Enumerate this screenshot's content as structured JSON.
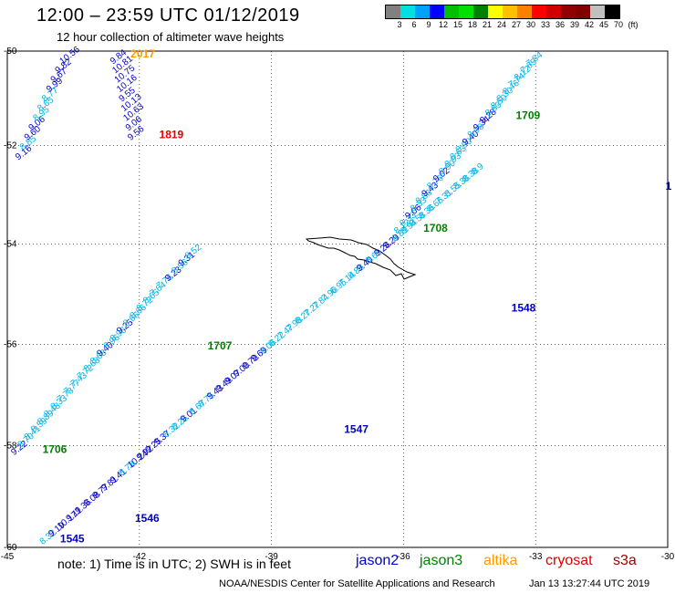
{
  "title": "12:00 – 23:59 UTC 01/12/2019",
  "subtitle": "12 hour collection of altimeter wave heights",
  "colorbar": {
    "colors": [
      "#808080",
      "#00e0e0",
      "#00a0ff",
      "#0000ff",
      "#00c000",
      "#00e000",
      "#008000",
      "#ffff00",
      "#ffc000",
      "#ff8000",
      "#ff0000",
      "#d00000",
      "#900000",
      "#800000",
      "#c0c0c0",
      "#000000"
    ],
    "labels": [
      "3",
      "6",
      "9",
      "12",
      "15",
      "18",
      "21",
      "24",
      "27",
      "30",
      "33",
      "36",
      "39",
      "42",
      "45",
      "70",
      "(ft)"
    ]
  },
  "map": {
    "lon_ticks": [
      "-45",
      "-42",
      "-39",
      "-36",
      "-33",
      "-30"
    ],
    "lat_ticks": [
      "-50",
      "-52",
      "-54",
      "-56",
      "-58",
      "-60"
    ],
    "time_labels": [
      {
        "text": "2017",
        "color": "#ff9900",
        "lon": -42.2,
        "lat": -50.15
      },
      {
        "text": "1819",
        "color": "#e00000",
        "lon": -41.55,
        "lat": -51.85
      },
      {
        "text": "1709",
        "color": "#008000",
        "lon": -33.45,
        "lat": -51.45
      },
      {
        "text": "1708",
        "color": "#008000",
        "lon": -35.55,
        "lat": -53.75
      },
      {
        "text": "1707",
        "color": "#008000",
        "lon": -40.45,
        "lat": -56.1
      },
      {
        "text": "1706",
        "color": "#008000",
        "lon": -44.2,
        "lat": -58.15
      },
      {
        "text": "1548",
        "color": "#0000cc",
        "lon": -33.55,
        "lat": -55.35
      },
      {
        "text": "1547",
        "color": "#0000cc",
        "lon": -37.35,
        "lat": -57.75
      },
      {
        "text": "1546",
        "color": "#0000cc",
        "lon": -42.1,
        "lat": -59.5
      },
      {
        "text": "1545",
        "color": "#0000cc",
        "lon": -43.8,
        "lat": -59.9
      },
      {
        "text": "1",
        "color": "#0000cc",
        "lon": -30.05,
        "lat": -52.9
      }
    ],
    "tracks": [
      {
        "name": "track-1708-1709",
        "points": [
          {
            "v": "8.12",
            "lon": -36.15,
            "lat": -53.8
          },
          {
            "v": "8.33",
            "lon": -36.02,
            "lat": -53.65
          },
          {
            "v": "9.06",
            "lon": -35.9,
            "lat": -53.5
          },
          {
            "v": "8.33",
            "lon": -35.78,
            "lat": -53.35
          },
          {
            "v": "8.86",
            "lon": -35.66,
            "lat": -53.2
          },
          {
            "v": "9.43",
            "lon": -35.52,
            "lat": -53.05
          },
          {
            "v": "8.76",
            "lon": -35.4,
            "lat": -52.9
          },
          {
            "v": "9.02",
            "lon": -35.26,
            "lat": -52.75
          },
          {
            "v": "8.90",
            "lon": -35.13,
            "lat": -52.6
          },
          {
            "v": "8.93",
            "lon": -35.0,
            "lat": -52.45
          },
          {
            "v": "8.63",
            "lon": -34.88,
            "lat": -52.3
          },
          {
            "v": "8.90",
            "lon": -34.75,
            "lat": -52.15
          },
          {
            "v": "9.40",
            "lon": -34.6,
            "lat": -52.0
          },
          {
            "v": "8.98",
            "lon": -34.48,
            "lat": -51.85
          },
          {
            "v": "9.34",
            "lon": -34.35,
            "lat": -51.7
          },
          {
            "v": "9.28",
            "lon": -34.2,
            "lat": -51.55
          },
          {
            "v": "8.83",
            "lon": -34.08,
            "lat": -51.4
          },
          {
            "v": "8.50",
            "lon": -33.95,
            "lat": -51.25
          },
          {
            "v": "8.30",
            "lon": -33.82,
            "lat": -51.1
          },
          {
            "v": "8.46",
            "lon": -33.68,
            "lat": -50.95
          },
          {
            "v": "7.74",
            "lon": -33.55,
            "lat": -50.8
          },
          {
            "v": "8.12",
            "lon": -33.42,
            "lat": -50.65
          },
          {
            "v": "7.65",
            "lon": -33.28,
            "lat": -50.5
          },
          {
            "v": "7.84",
            "lon": -33.15,
            "lat": -50.35
          }
        ]
      },
      {
        "name": "track-1706-1707",
        "points": [
          {
            "v": "9.22",
            "lon": -44.85,
            "lat": -58.2
          },
          {
            "v": "8.70",
            "lon": -44.7,
            "lat": -58.05
          },
          {
            "v": "8.41",
            "lon": -44.55,
            "lat": -57.9
          },
          {
            "v": "8.59",
            "lon": -44.4,
            "lat": -57.75
          },
          {
            "v": "8.89",
            "lon": -44.25,
            "lat": -57.6
          },
          {
            "v": "8.48",
            "lon": -44.1,
            "lat": -57.45
          },
          {
            "v": "8.33",
            "lon": -43.95,
            "lat": -57.3
          },
          {
            "v": "7.78",
            "lon": -43.8,
            "lat": -57.15
          },
          {
            "v": "7.77",
            "lon": -43.65,
            "lat": -57.0
          },
          {
            "v": "7.43",
            "lon": -43.5,
            "lat": -56.85
          },
          {
            "v": "7.72",
            "lon": -43.35,
            "lat": -56.7
          },
          {
            "v": "8.68",
            "lon": -43.2,
            "lat": -56.55
          },
          {
            "v": "8.68",
            "lon": -43.05,
            "lat": -56.4
          },
          {
            "v": "9.40",
            "lon": -42.9,
            "lat": -56.25
          },
          {
            "v": "8.96",
            "lon": -42.75,
            "lat": -56.1
          },
          {
            "v": "8.96",
            "lon": -42.6,
            "lat": -55.95
          },
          {
            "v": "9.25",
            "lon": -42.45,
            "lat": -55.8
          },
          {
            "v": "8.66",
            "lon": -42.3,
            "lat": -55.65
          },
          {
            "v": "8.66",
            "lon": -42.15,
            "lat": -55.5
          },
          {
            "v": "8.72",
            "lon": -42.0,
            "lat": -55.35
          },
          {
            "v": "8.65",
            "lon": -41.85,
            "lat": -55.2
          },
          {
            "v": "7.64",
            "lon": -41.7,
            "lat": -55.05
          },
          {
            "v": "7.76",
            "lon": -41.55,
            "lat": -54.9
          },
          {
            "v": "9.23",
            "lon": -41.35,
            "lat": -54.75
          },
          {
            "v": "8.56",
            "lon": -41.2,
            "lat": -54.6
          },
          {
            "v": "9.31",
            "lon": -41.05,
            "lat": -54.45
          },
          {
            "v": "8.52",
            "lon": -40.9,
            "lat": -54.3
          }
        ]
      },
      {
        "name": "track-1545-1548",
        "points": [
          {
            "v": "8.32",
            "lon": -44.2,
            "lat": -59.95
          },
          {
            "v": "9.19",
            "lon": -44.0,
            "lat": -59.8
          },
          {
            "v": "10.17",
            "lon": -43.8,
            "lat": -59.65
          },
          {
            "v": "9.11",
            "lon": -43.6,
            "lat": -59.5
          },
          {
            "v": "9.36",
            "lon": -43.4,
            "lat": -59.35
          },
          {
            "v": "9.08",
            "lon": -43.2,
            "lat": -59.2
          },
          {
            "v": "9.77",
            "lon": -43.0,
            "lat": -59.05
          },
          {
            "v": "9.81",
            "lon": -42.8,
            "lat": -58.9
          },
          {
            "v": "9.41",
            "lon": -42.6,
            "lat": -58.75
          },
          {
            "v": "8.78",
            "lon": -42.4,
            "lat": -58.6
          },
          {
            "v": "10.24",
            "lon": -42.2,
            "lat": -58.45
          },
          {
            "v": "9.92",
            "lon": -42.0,
            "lat": -58.3
          },
          {
            "v": "9.25",
            "lon": -41.8,
            "lat": -58.15
          },
          {
            "v": "9.37",
            "lon": -41.6,
            "lat": -58.0
          },
          {
            "v": "8.32",
            "lon": -41.4,
            "lat": -57.85
          },
          {
            "v": "8.26",
            "lon": -41.2,
            "lat": -57.7
          },
          {
            "v": "9.01",
            "lon": -41.0,
            "lat": -57.55
          },
          {
            "v": "8.67",
            "lon": -40.8,
            "lat": -57.4
          },
          {
            "v": "8.75",
            "lon": -40.6,
            "lat": -57.25
          },
          {
            "v": "9.43",
            "lon": -40.4,
            "lat": -57.1
          },
          {
            "v": "9.49",
            "lon": -40.2,
            "lat": -56.95
          },
          {
            "v": "9.07",
            "lon": -40.0,
            "lat": -56.8
          },
          {
            "v": "9.00",
            "lon": -39.8,
            "lat": -56.65
          },
          {
            "v": "9.70",
            "lon": -39.6,
            "lat": -56.5
          },
          {
            "v": "9.69",
            "lon": -39.4,
            "lat": -56.35
          },
          {
            "v": "8.06",
            "lon": -39.2,
            "lat": -56.2
          },
          {
            "v": "8.22",
            "lon": -39.0,
            "lat": -56.05
          },
          {
            "v": "7.47",
            "lon": -38.8,
            "lat": -55.9
          },
          {
            "v": "7.98",
            "lon": -38.6,
            "lat": -55.75
          },
          {
            "v": "8.27",
            "lon": -38.4,
            "lat": -55.6
          },
          {
            "v": "7.27",
            "lon": -38.2,
            "lat": -55.45
          },
          {
            "v": "7.84",
            "lon": -38.0,
            "lat": -55.3
          },
          {
            "v": "7.90",
            "lon": -37.8,
            "lat": -55.15
          },
          {
            "v": "6.95",
            "lon": -37.6,
            "lat": -55.0
          },
          {
            "v": "7.14",
            "lon": -37.4,
            "lat": -54.85
          },
          {
            "v": "8.88",
            "lon": -37.2,
            "lat": -54.7
          },
          {
            "v": "9.40",
            "lon": -37.0,
            "lat": -54.55
          },
          {
            "v": "8.65",
            "lon": -36.8,
            "lat": -54.4
          },
          {
            "v": "9.26",
            "lon": -36.6,
            "lat": -54.25
          },
          {
            "v": "9.29",
            "lon": -36.4,
            "lat": -54.1
          },
          {
            "v": "8.89",
            "lon": -36.2,
            "lat": -53.95
          },
          {
            "v": "8.94",
            "lon": -36.0,
            "lat": -53.8
          },
          {
            "v": "8.58",
            "lon": -35.8,
            "lat": -53.65
          },
          {
            "v": "8.36",
            "lon": -35.6,
            "lat": -53.5
          },
          {
            "v": "8.66",
            "lon": -35.4,
            "lat": -53.35
          },
          {
            "v": "7.31",
            "lon": -35.2,
            "lat": -53.2
          },
          {
            "v": "8.55",
            "lon": -35.0,
            "lat": -53.05
          },
          {
            "v": "8.38",
            "lon": -34.8,
            "lat": -52.9
          },
          {
            "v": "8.38",
            "lon": -34.6,
            "lat": -52.75
          },
          {
            "v": "8.9",
            "lon": -34.4,
            "lat": -52.6
          }
        ]
      },
      {
        "name": "track-1819-2017",
        "points": [
          {
            "v": "9.16",
            "lon": -44.75,
            "lat": -52.3
          },
          {
            "v": "8.85",
            "lon": -44.65,
            "lat": -52.1
          },
          {
            "v": "9.60",
            "lon": -44.55,
            "lat": -51.9
          },
          {
            "v": "9.06",
            "lon": -44.45,
            "lat": -51.7
          },
          {
            "v": "8.95",
            "lon": -44.35,
            "lat": -51.5
          },
          {
            "v": "8.65",
            "lon": -44.25,
            "lat": -51.3
          },
          {
            "v": "8.77",
            "lon": -44.15,
            "lat": -51.1
          },
          {
            "v": "9.99",
            "lon": -44.05,
            "lat": -50.9
          },
          {
            "v": "9.67",
            "lon": -43.95,
            "lat": -50.7
          },
          {
            "v": "9.82",
            "lon": -43.85,
            "lat": -50.5
          },
          {
            "v": "10.56",
            "lon": -43.75,
            "lat": -50.3
          }
        ]
      },
      {
        "name": "track-1819-2017-b",
        "points": [
          {
            "v": "9.56",
            "lon": -42.2,
            "lat": -51.9
          },
          {
            "v": "9.06",
            "lon": -42.25,
            "lat": -51.7
          },
          {
            "v": "10.63",
            "lon": -42.3,
            "lat": -51.5
          },
          {
            "v": "10.13",
            "lon": -42.35,
            "lat": -51.3
          },
          {
            "v": "9.55",
            "lon": -42.4,
            "lat": -51.1
          },
          {
            "v": "10.16",
            "lon": -42.45,
            "lat": -50.9
          },
          {
            "v": "10.75",
            "lon": -42.5,
            "lat": -50.7
          },
          {
            "v": "10.81",
            "lon": -42.55,
            "lat": -50.5
          },
          {
            "v": "9.84",
            "lon": -42.6,
            "lat": -50.3
          }
        ]
      }
    ]
  },
  "footer": {
    "note": "note:  1)  Time is in UTC;  2)  SWH is in feet",
    "satellites": [
      {
        "name": "jason2",
        "color": "#0000cc"
      },
      {
        "name": "jason3",
        "color": "#008000"
      },
      {
        "name": "altika",
        "color": "#ff9900"
      },
      {
        "name": "cryosat",
        "color": "#e00000"
      },
      {
        "name": "s3a",
        "color": "#990000"
      }
    ],
    "credit": "NOAA/NESDIS Center for Satellite Applications and Research",
    "stamp": "Jan 13 13:27:44 UTC 2019"
  }
}
